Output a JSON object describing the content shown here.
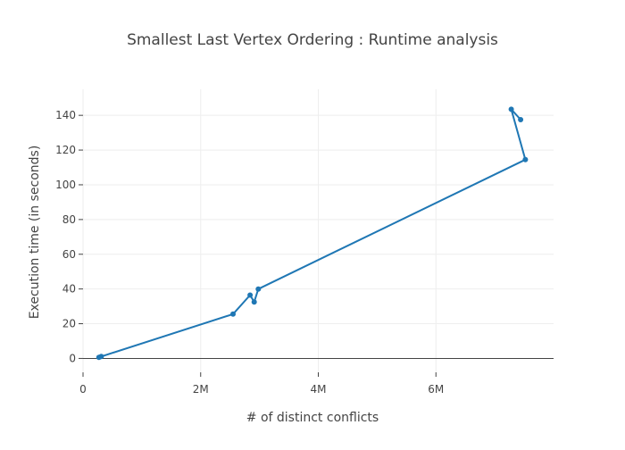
{
  "chart_data": {
    "type": "line",
    "title": "Smallest Last Vertex Ordering : Runtime analysis",
    "xlabel": "# of distinct conflicts",
    "ylabel": "Execution time (in seconds)",
    "xlim": [
      0,
      8000000
    ],
    "ylim": [
      -8,
      155
    ],
    "x_ticks": [
      {
        "value": 0,
        "label": "0"
      },
      {
        "value": 2000000,
        "label": "2M"
      },
      {
        "value": 4000000,
        "label": "4M"
      },
      {
        "value": 6000000,
        "label": "6M"
      }
    ],
    "y_ticks": [
      {
        "value": 0,
        "label": "0"
      },
      {
        "value": 20,
        "label": "20"
      },
      {
        "value": 40,
        "label": "40"
      },
      {
        "value": 60,
        "label": "60"
      },
      {
        "value": 80,
        "label": "80"
      },
      {
        "value": 100,
        "label": "100"
      },
      {
        "value": 120,
        "label": "120"
      },
      {
        "value": 140,
        "label": "140"
      }
    ],
    "grid": true,
    "series": [
      {
        "x": [
          270000,
          310000,
          2550000,
          2840000,
          2910000,
          2980000,
          7520000,
          7280000,
          7440000
        ],
        "y": [
          0.6,
          1.1,
          25.5,
          36.5,
          32.5,
          40.0,
          114.5,
          143.5,
          137.5
        ]
      }
    ],
    "colors": {
      "series": "#1f77b4",
      "grid": "#eeeeee",
      "zeroline": "#444444",
      "text": "#444444"
    }
  }
}
